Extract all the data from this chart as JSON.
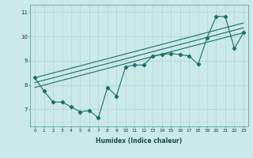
{
  "xlabel": "Humidex (Indice chaleur)",
  "xlim": [
    -0.5,
    23.5
  ],
  "ylim": [
    6.3,
    11.3
  ],
  "xticks": [
    0,
    1,
    2,
    3,
    4,
    5,
    6,
    7,
    8,
    9,
    10,
    11,
    12,
    13,
    14,
    15,
    16,
    17,
    18,
    19,
    20,
    21,
    22,
    23
  ],
  "yticks": [
    7,
    8,
    9,
    10,
    11
  ],
  "bg_color": "#cce9e9",
  "line_color": "#1a6e6a",
  "grid_color": "#afd4d4",
  "line1_x": [
    0,
    1,
    2,
    3,
    4,
    5,
    6,
    7,
    8,
    9,
    10,
    11,
    12,
    13,
    14,
    15,
    16,
    17,
    18,
    19,
    20,
    21,
    22,
    23
  ],
  "line1_y": [
    8.3,
    7.75,
    7.3,
    7.3,
    7.1,
    6.9,
    6.95,
    6.65,
    7.9,
    7.55,
    8.75,
    8.82,
    8.82,
    9.2,
    9.25,
    9.3,
    9.25,
    9.2,
    8.85,
    9.95,
    10.82,
    10.82,
    9.5,
    10.15
  ],
  "regline1_x": [
    0,
    23
  ],
  "regline1_y": [
    7.9,
    10.15
  ],
  "regline2_x": [
    0,
    23
  ],
  "regline2_y": [
    8.1,
    10.35
  ],
  "regline3_x": [
    0,
    23
  ],
  "regline3_y": [
    8.3,
    10.55
  ]
}
